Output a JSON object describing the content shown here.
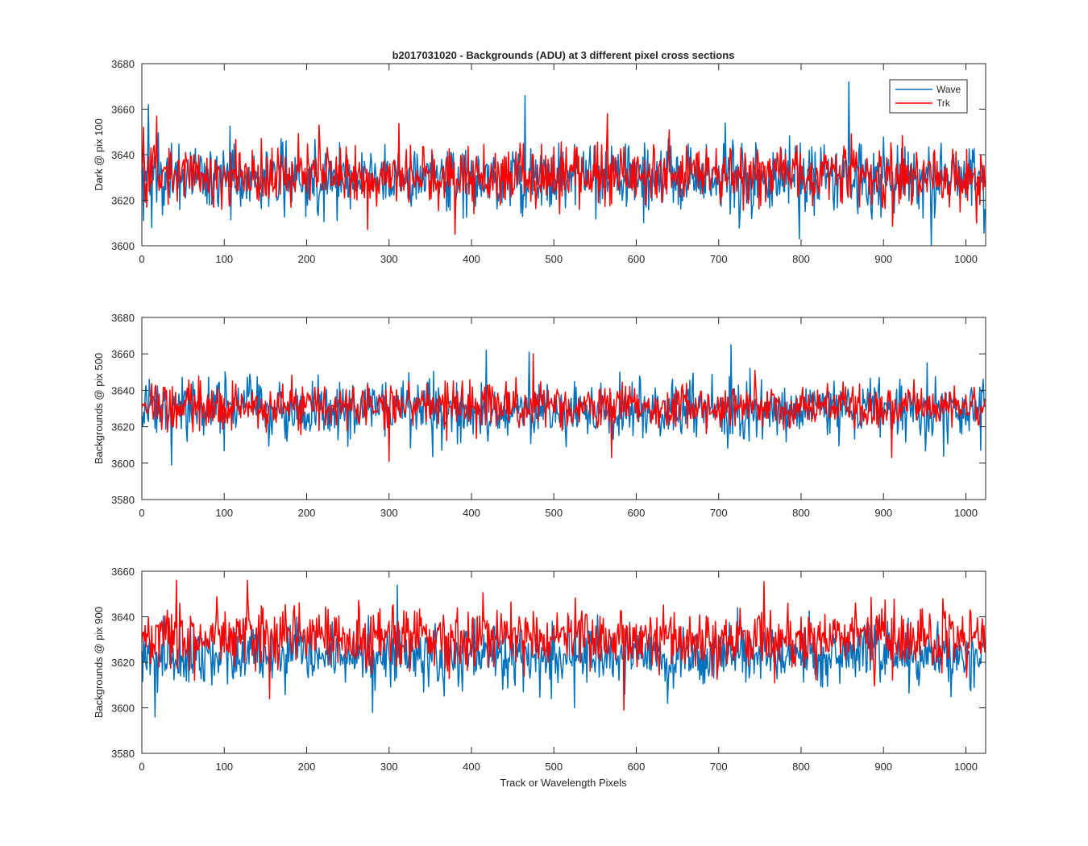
{
  "figure": {
    "title": "b2017031020 - Backgrounds (ADU) at 3 different pixel cross sections",
    "xlabel": "Track or Wavelength Pixels",
    "colors": {
      "wave": "#0072BD",
      "trk": "#FF0000",
      "axes": "#262626"
    }
  },
  "chart_data": [
    {
      "type": "line",
      "title": "b2017031020 - Backgrounds (ADU) at 3 different pixel cross sections",
      "xlabel": "",
      "ylabel": "Dark @ pix 100",
      "xlim": [
        0,
        1024
      ],
      "ylim": [
        3600,
        3680
      ],
      "xticks": [
        0,
        100,
        200,
        300,
        400,
        500,
        600,
        700,
        800,
        900,
        1000
      ],
      "yticks": [
        3600,
        3620,
        3640,
        3660,
        3680
      ],
      "legend": {
        "placement": "top-right",
        "entries": [
          "Wave",
          "Trk"
        ]
      },
      "series": [
        {
          "name": "Wave",
          "color": "#0072BD",
          "n_points": 1024,
          "approx_mean": 3630,
          "approx_noise_sd": 7.5,
          "notable_points": [
            [
              8,
              3662
            ],
            [
              12,
              3608
            ],
            [
              465,
              3666
            ],
            [
              798,
              3603
            ],
            [
              858,
              3672
            ],
            [
              958,
              3600
            ]
          ]
        },
        {
          "name": "Trk",
          "color": "#FF0000",
          "n_points": 1024,
          "approx_mean": 3631,
          "approx_noise_sd": 6.5,
          "notable_points": [
            [
              2,
              3652
            ],
            [
              18,
              3657
            ],
            [
              380,
              3605
            ],
            [
              565,
              3658
            ],
            [
              1013,
              3610
            ]
          ]
        }
      ]
    },
    {
      "type": "line",
      "title": "",
      "xlabel": "",
      "ylabel": "Backgrounds @ pix 500",
      "xlim": [
        0,
        1024
      ],
      "ylim": [
        3580,
        3680
      ],
      "xticks": [
        0,
        100,
        200,
        300,
        400,
        500,
        600,
        700,
        800,
        900,
        1000
      ],
      "yticks": [
        3580,
        3600,
        3620,
        3640,
        3660,
        3680
      ],
      "series": [
        {
          "name": "Wave",
          "color": "#0072BD",
          "n_points": 1024,
          "approx_mean": 3629,
          "approx_noise_sd": 8,
          "notable_points": [
            [
              36,
              3599
            ],
            [
              418,
              3662
            ],
            [
              470,
              3661
            ],
            [
              715,
              3665
            ],
            [
              1018,
              3607
            ]
          ]
        },
        {
          "name": "Trk",
          "color": "#FF0000",
          "n_points": 1024,
          "approx_mean": 3631,
          "approx_noise_sd": 6,
          "notable_points": [
            [
              300,
              3601
            ],
            [
              475,
              3660
            ],
            [
              570,
              3603
            ],
            [
              910,
              3603
            ]
          ]
        }
      ]
    },
    {
      "type": "line",
      "title": "",
      "xlabel": "Track or Wavelength Pixels",
      "ylabel": "Backgrounds @ pix 900",
      "xlim": [
        0,
        1024
      ],
      "ylim": [
        3580,
        3660
      ],
      "xticks": [
        0,
        100,
        200,
        300,
        400,
        500,
        600,
        700,
        800,
        900,
        1000
      ],
      "yticks": [
        3580,
        3600,
        3620,
        3640,
        3660
      ],
      "series": [
        {
          "name": "Wave",
          "color": "#0072BD",
          "n_points": 1024,
          "approx_mean": 3623,
          "approx_noise_sd": 7,
          "notable_points": [
            [
              16,
              3596
            ],
            [
              280,
              3598
            ],
            [
              310,
              3654
            ],
            [
              525,
              3600
            ]
          ]
        },
        {
          "name": "Trk",
          "color": "#FF0000",
          "n_points": 1024,
          "approx_mean": 3631,
          "approx_noise_sd": 7,
          "notable_points": [
            [
              42,
              3656
            ],
            [
              128,
              3656
            ],
            [
              155,
              3604
            ],
            [
              585,
              3599
            ]
          ]
        }
      ]
    }
  ]
}
